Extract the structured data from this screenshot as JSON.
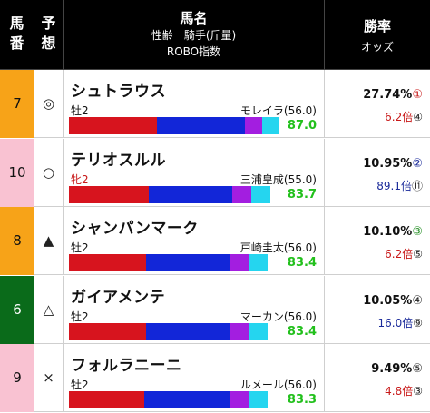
{
  "header": {
    "col_num": [
      "馬",
      "番"
    ],
    "col_pred": [
      "予",
      "想"
    ],
    "col_name": "馬名",
    "col_sub1": "性齢　騎手(斤量)",
    "col_sub2": "ROBO指数",
    "col_rate": "勝率",
    "col_odds": "オッズ"
  },
  "colors": {
    "gate_orange": "#f7a318",
    "gate_pink": "#f9c2d2",
    "gate_green": "#0a6b1a",
    "bar_red": "#d7141e",
    "bar_blue": "#1226d8",
    "bar_purple": "#a31ee0",
    "bar_cyan": "#25d5ef",
    "score_green": "#22c01c",
    "rank_red": "#c81919",
    "rank_blue": "#1a2a9a",
    "rank_green": "#1a8a1a",
    "rank_black": "#222222"
  },
  "rows": [
    {
      "num": "7",
      "gate_color": "#f7a318",
      "num_color": "#111111",
      "mark": "◎",
      "name": "シュトラウス",
      "sexage": "牡2",
      "sexage_color": "#111111",
      "jockey": "モレイラ(56.0)",
      "bar": [
        0.42,
        0.42,
        0.08,
        0.08
      ],
      "score": "87.0",
      "rate": "27.74%",
      "rate_rank": "①",
      "rate_rank_color": "#c81919",
      "odds": "6.2倍",
      "odds_color": "#c81919",
      "odds_rank": "④",
      "odds_rank_color": "#222222"
    },
    {
      "num": "10",
      "gate_color": "#f9c2d2",
      "num_color": "#111111",
      "mark": "○",
      "name": "テリオスルル",
      "sexage": "牝2",
      "sexage_color": "#c81919",
      "jockey": "三浦皇成(55.0)",
      "bar": [
        0.38,
        0.4,
        0.09,
        0.09
      ],
      "score": "83.7",
      "rate": "10.95%",
      "rate_rank": "②",
      "rate_rank_color": "#1a2a9a",
      "odds": "89.1倍",
      "odds_color": "#1a2a9a",
      "odds_rank": "⑪",
      "odds_rank_color": "#222222"
    },
    {
      "num": "8",
      "gate_color": "#f7a318",
      "num_color": "#111111",
      "mark": "▲",
      "name": "シャンパンマーク",
      "sexage": "牡2",
      "sexage_color": "#111111",
      "jockey": "戸崎圭太(56.0)",
      "bar": [
        0.37,
        0.4,
        0.09,
        0.09
      ],
      "score": "83.4",
      "rate": "10.10%",
      "rate_rank": "③",
      "rate_rank_color": "#1a8a1a",
      "odds": "6.2倍",
      "odds_color": "#c81919",
      "odds_rank": "⑤",
      "odds_rank_color": "#222222"
    },
    {
      "num": "6",
      "gate_color": "#0a6b1a",
      "num_color": "#ffffff",
      "mark": "△",
      "name": "ガイアメンテ",
      "sexage": "牡2",
      "sexage_color": "#111111",
      "jockey": "マーカン(56.0)",
      "bar": [
        0.37,
        0.4,
        0.09,
        0.09
      ],
      "score": "83.4",
      "rate": "10.05%",
      "rate_rank": "④",
      "rate_rank_color": "#222222",
      "odds": "16.0倍",
      "odds_color": "#1a2a9a",
      "odds_rank": "⑨",
      "odds_rank_color": "#222222"
    },
    {
      "num": "9",
      "gate_color": "#f9c2d2",
      "num_color": "#111111",
      "mark": "×",
      "name": "フォルラニーニ",
      "sexage": "牡2",
      "sexage_color": "#111111",
      "jockey": "ルメール(56.0)",
      "bar": [
        0.36,
        0.41,
        0.09,
        0.09
      ],
      "score": "83.3",
      "rate": "9.49%",
      "rate_rank": "⑤",
      "rate_rank_color": "#222222",
      "odds": "4.8倍",
      "odds_color": "#c81919",
      "odds_rank": "③",
      "odds_rank_color": "#222222"
    }
  ]
}
